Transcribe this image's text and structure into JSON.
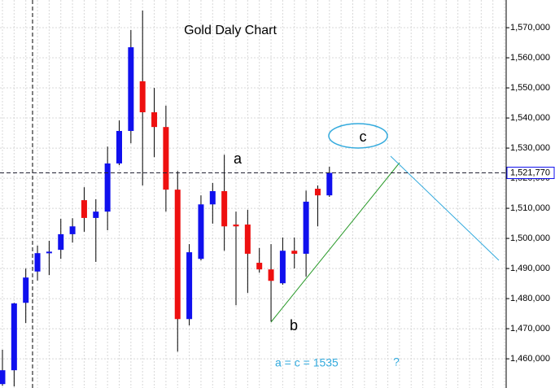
{
  "chart_data": {
    "type": "candlestick",
    "title": "Gold Daly Chart",
    "open": [
      1451600,
      1456200,
      1478600,
      1489000,
      1495300,
      1496200,
      1501400,
      1512700,
      1506800,
      1508900,
      1524900,
      1535700,
      1552200,
      1541900,
      1537000,
      1516200,
      1473200,
      1493200,
      1511300,
      1515700,
      1504600,
      1504600,
      1491900,
      1489700,
      1485100,
      1495900,
      1494900,
      1516500,
      1514300
    ],
    "high": [
      1463000,
      1478600,
      1490000,
      1497600,
      1499200,
      1506500,
      1506700,
      1517000,
      1513000,
      1530500,
      1539200,
      1569200,
      1575700,
      1550000,
      1544100,
      1522400,
      1498100,
      1514300,
      1518400,
      1527800,
      1508900,
      1509500,
      1496800,
      1498100,
      1500300,
      1500300,
      1515900,
      1517600,
      1523800
    ],
    "low": [
      1451000,
      1450800,
      1471900,
      1486000,
      1487800,
      1493200,
      1498600,
      1502200,
      1492200,
      1502700,
      1524300,
      1531600,
      1517600,
      1527000,
      1508900,
      1462400,
      1471100,
      1492700,
      1504900,
      1495900,
      1477800,
      1481900,
      1488600,
      1472400,
      1484600,
      1490000,
      1487300,
      1504000,
      1513800
    ],
    "close": [
      1456200,
      1478400,
      1487000,
      1495100,
      1495600,
      1501400,
      1504000,
      1506800,
      1508900,
      1524900,
      1535700,
      1563500,
      1541900,
      1537000,
      1516200,
      1473200,
      1495400,
      1511300,
      1515700,
      1504000,
      1504000,
      1494900,
      1489700,
      1485900,
      1495900,
      1494900,
      1512200,
      1514300,
      1521770
    ],
    "up_color": "#1010ee",
    "down_color": "#ee1010",
    "ylim": [
      1450300,
      1579200
    ],
    "yticks": [
      {
        "value": 1460000,
        "label": "1,460,000"
      },
      {
        "value": 1470000,
        "label": "1,470,000"
      },
      {
        "value": 1480000,
        "label": "1,480,000"
      },
      {
        "value": 1490000,
        "label": "1,490,000"
      },
      {
        "value": 1500000,
        "label": "1,500,000"
      },
      {
        "value": 1510000,
        "label": "1,510,000"
      },
      {
        "value": 1520000,
        "label": "1,520,000"
      },
      {
        "value": 1530000,
        "label": "1,530,000"
      },
      {
        "value": 1540000,
        "label": "1,540,000"
      },
      {
        "value": 1550000,
        "label": "1,550,000"
      },
      {
        "value": 1560000,
        "label": "1,560,000"
      },
      {
        "value": 1570000,
        "label": "1,570,000"
      }
    ],
    "current_price": {
      "value": 1521770,
      "label": "1,521,770"
    },
    "grid": true,
    "annotations": [
      "a",
      "b",
      "c",
      "a  =  c  =  1535",
      "?"
    ]
  }
}
